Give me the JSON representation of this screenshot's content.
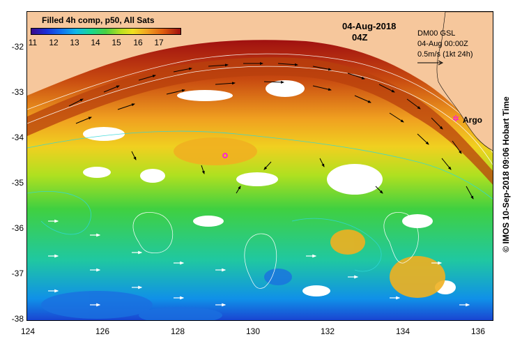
{
  "map": {
    "product_title": "Filled 4h comp, p50, All Sats",
    "date": "04-Aug-2018",
    "time": "04Z",
    "velocity_source": "DM00 GSL",
    "velocity_time": "04-Aug 00:00Z",
    "velocity_scale": "0.5m/s (1kt 24h)",
    "argo_label": "Argo",
    "credit": "© IMOS 10-Sep-2018 09:06 Hobart Time",
    "colorbar_ticks": [
      "11",
      "12",
      "13",
      "14",
      "15",
      "16",
      "17"
    ],
    "lat_labels": [
      "-32",
      "-33",
      "-34",
      "-35",
      "-36",
      "-37",
      "-38"
    ],
    "lon_labels": [
      "124",
      "126",
      "128",
      "130",
      "132",
      "134",
      "136"
    ],
    "colors": {
      "land": "#f6c79c",
      "argo": "#ff00ff",
      "cold": "#1a2ed8",
      "warm": "#a01010"
    }
  }
}
